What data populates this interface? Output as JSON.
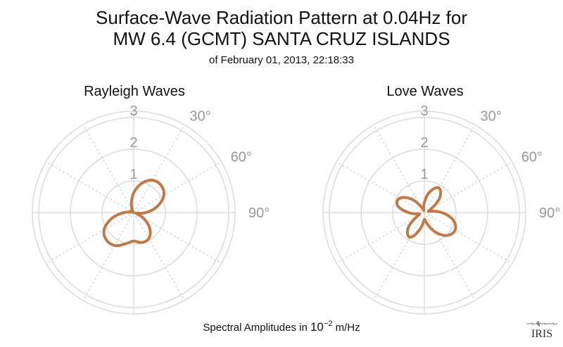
{
  "title_line1": "Surface-Wave Radiation Pattern at 0.04Hz for",
  "title_line2": "MW 6.4 (GCMT) SANTA CRUZ ISLANDS",
  "subtitle": "of February 01, 2013, 22:18:33",
  "footer": {
    "prefix": "Spectral Amplitudes in ",
    "base": "10",
    "exponent": "−2",
    "unit": " m/Hz"
  },
  "logo": {
    "text": "IRIS",
    "icon": "iris-seismogram-logo"
  },
  "colors": {
    "pattern": "#c07a48",
    "grid": "#dddddd",
    "labels": "#999999"
  },
  "chart_data": [
    {
      "type": "polar",
      "title": "Rayleigh Waves",
      "radial_ticks": [
        1,
        2,
        3
      ],
      "rlim": [
        0,
        3.3
      ],
      "angle_ticks": [
        "30°",
        "60°",
        "90°"
      ],
      "angle_step_deg": 30,
      "azimuth_deg": [
        0,
        15,
        30,
        45,
        60,
        75,
        90,
        105,
        120,
        135,
        150,
        165,
        180,
        195,
        210,
        225,
        240,
        255,
        270,
        285,
        300,
        315,
        330,
        345
      ],
      "amplitude": [
        0.62,
        0.95,
        1.18,
        1.22,
        1.1,
        0.78,
        0.38,
        0.05,
        0.35,
        0.72,
        0.95,
        0.98,
        0.9,
        1.02,
        1.2,
        1.22,
        1.08,
        0.72,
        0.3,
        0.03,
        0.08,
        0.1,
        0.08,
        0.28
      ],
      "grid": true
    },
    {
      "type": "polar",
      "title": "Love Waves",
      "radial_ticks": [
        1,
        2,
        3
      ],
      "rlim": [
        0,
        3.3
      ],
      "angle_ticks": [
        "30°",
        "60°",
        "90°"
      ],
      "angle_step_deg": 30,
      "azimuth_deg": [
        0,
        15,
        30,
        45,
        60,
        75,
        90,
        105,
        120,
        135,
        150,
        165,
        180,
        195,
        210,
        225,
        240,
        255,
        270,
        285,
        300,
        315,
        330,
        345
      ],
      "amplitude": [
        0.32,
        0.68,
        0.9,
        0.7,
        0.26,
        0.15,
        0.55,
        0.95,
        1.12,
        1.02,
        0.72,
        0.38,
        0.22,
        0.55,
        0.9,
        0.74,
        0.3,
        0.16,
        0.5,
        0.88,
        0.9,
        0.62,
        0.22,
        0.08
      ],
      "grid": true
    }
  ]
}
